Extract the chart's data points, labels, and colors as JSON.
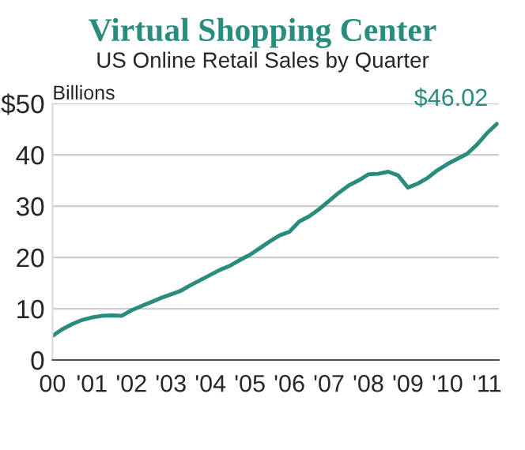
{
  "chart_data": {
    "type": "line",
    "title": "Virtual Shopping Center",
    "subtitle": "US Online Retail Sales by Quarter",
    "ylabel": "Billions",
    "x": [
      2000,
      2000.25,
      2000.5,
      2000.75,
      2001,
      2001.25,
      2001.5,
      2001.75,
      2002,
      2002.25,
      2002.5,
      2002.75,
      2003,
      2003.25,
      2003.5,
      2003.75,
      2004,
      2004.25,
      2004.5,
      2004.75,
      2005,
      2005.25,
      2005.5,
      2005.75,
      2006,
      2006.25,
      2006.5,
      2006.75,
      2007,
      2007.25,
      2007.5,
      2007.75,
      2008,
      2008.25,
      2008.5,
      2008.75,
      2009,
      2009.25,
      2009.5,
      2009.75,
      2010,
      2010.25,
      2010.5,
      2010.75,
      2011,
      2011.25
    ],
    "series": [
      {
        "color": "#2a8c7c",
        "values": [
          4.7,
          6,
          7,
          7.8,
          8.3,
          8.6,
          8.7,
          8.6,
          9.7,
          10.5,
          11.3,
          12.1,
          12.8,
          13.5,
          14.6,
          15.6,
          16.6,
          17.6,
          18.4,
          19.5,
          20.5,
          21.8,
          23.1,
          24.3,
          25,
          27,
          28,
          29.4,
          31,
          32.6,
          34,
          35,
          36.2,
          36.3,
          36.7,
          36,
          33.6,
          34.4,
          35.5,
          37,
          38.2,
          39.2,
          40.2,
          42,
          44.2,
          46.02
        ]
      }
    ],
    "annotations": [
      {
        "text": "$46.02",
        "x": 2011.25,
        "y": 46.02
      }
    ],
    "xlim": [
      2000,
      2011.3
    ],
    "xticks": [
      {
        "value": 2000,
        "label": "00"
      },
      {
        "value": 2001,
        "label": "'01"
      },
      {
        "value": 2002,
        "label": "'02"
      },
      {
        "value": 2003,
        "label": "'03"
      },
      {
        "value": 2004,
        "label": "'04"
      },
      {
        "value": 2005,
        "label": "'05"
      },
      {
        "value": 2006,
        "label": "'06"
      },
      {
        "value": 2007,
        "label": "'07"
      },
      {
        "value": 2008,
        "label": "'08"
      },
      {
        "value": 2009,
        "label": "'09"
      },
      {
        "value": 2010,
        "label": "'10"
      },
      {
        "value": 2011,
        "label": "'11"
      }
    ],
    "ylim": [
      0,
      50
    ],
    "yticks": [
      0,
      10,
      20,
      30,
      40,
      {
        "value": 50,
        "label": "$50"
      }
    ],
    "grid": "y",
    "legend": false,
    "marker": "none",
    "line_style": "solid"
  }
}
